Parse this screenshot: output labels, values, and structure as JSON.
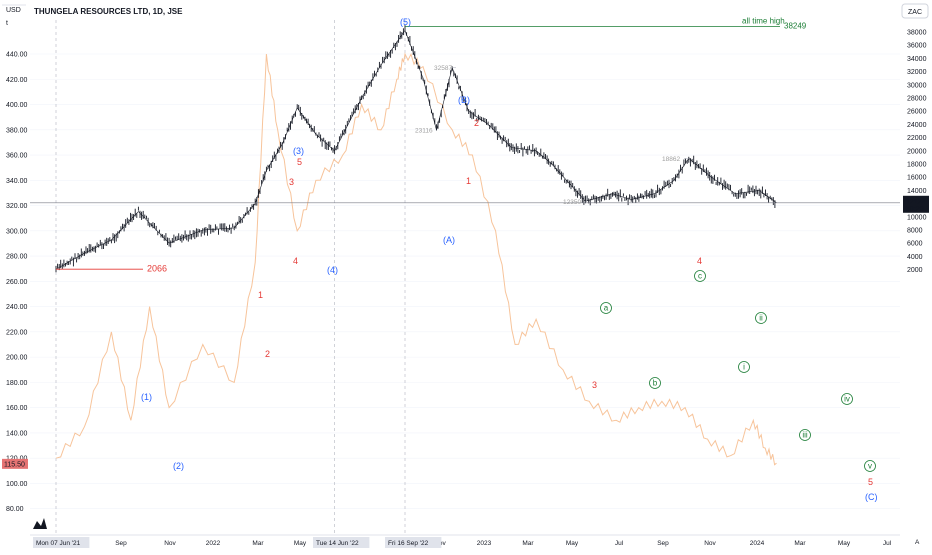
{
  "chart_data": {
    "type": "line",
    "title": "THUNGELA RESOURCES LTD, 1D, JSE",
    "left_axis": {
      "currency": "USD",
      "unit_marker": "t",
      "ticks": [
        "440.00",
        "420.00",
        "400.00",
        "380.00",
        "360.00",
        "340.00",
        "320.00",
        "300.00",
        "280.00",
        "260.00",
        "240.00",
        "220.00",
        "200.00",
        "180.00",
        "160.00",
        "140.00",
        "120.00",
        "100.00",
        "80.00"
      ],
      "last_value": "115.50"
    },
    "right_axis": {
      "currency": "ZAC",
      "ticks": [
        "38000",
        "36000",
        "34000",
        "32000",
        "30000",
        "28000",
        "26000",
        "24000",
        "22000",
        "20000",
        "18000",
        "16000",
        "14000",
        "12000",
        "10000",
        "8000",
        "6000",
        "4000",
        "2000"
      ],
      "last_price": "12124",
      "countdown": "50:20"
    },
    "x_axis": {
      "ticks": [
        "Sep",
        "Nov",
        "2022",
        "Mar",
        "May",
        "Jul",
        "Nov",
        "2023",
        "Mar",
        "May",
        "Jul",
        "Sep",
        "Nov",
        "2024",
        "Mar",
        "May",
        "Jul"
      ],
      "highlighted": [
        "Mon 07 Jun '21",
        "Tue 14 Jun '22",
        "Fri 16 Sep '22"
      ]
    },
    "series": [
      {
        "name": "",
        "color": "#131722",
        "x": [
          "2021-06-07",
          "2021-07-15",
          "2021-08-20",
          "2021-09-25",
          "2021-11-05",
          "2021-12-20",
          "2022-01-31",
          "2022-02-28",
          "2022-03-15",
          "2022-04-05",
          "2022-04-25",
          "2022-05-20",
          "2022-06-14",
          "2022-07-20",
          "2022-08-15",
          "2022-09-16",
          "2022-10-10",
          "2022-10-28",
          "2022-11-18",
          "2022-12-10",
          "2023-01-05",
          "2023-02-05",
          "2023-03-10",
          "2023-03-31",
          "2023-05-15",
          "2023-06-20",
          "2023-07-15",
          "2023-08-15",
          "2023-09-10",
          "2023-09-30",
          "2023-10-30",
          "2023-12-01",
          "2024-01-02",
          "2024-01-25"
        ],
        "values": [
          2066,
          4500,
          6500,
          10800,
          6000,
          8000,
          8300,
          12000,
          17000,
          21000,
          26500,
          22500,
          20000,
          28000,
          33000,
          38249,
          31000,
          23116,
          32587,
          26000,
          24000,
          20500,
          20000,
          18000,
          12350,
          13500,
          12600,
          13500,
          15500,
          18862,
          16000,
          13500,
          14000,
          12124
        ]
      },
      {
        "name": "",
        "color": "#f7c49b",
        "x": [
          "2021-06-07",
          "2021-07-15",
          "2021-08-20",
          "2021-09-15",
          "2021-10-10",
          "2021-11-05",
          "2021-12-20",
          "2022-01-31",
          "2022-02-28",
          "2022-03-15",
          "2022-03-30",
          "2022-04-25",
          "2022-05-20",
          "2022-06-25",
          "2022-07-20",
          "2022-08-15",
          "2022-09-05",
          "2022-09-16",
          "2022-10-10",
          "2022-11-18",
          "2022-12-15",
          "2023-01-15",
          "2023-02-10",
          "2023-03-10",
          "2023-04-15",
          "2023-05-20",
          "2023-06-25",
          "2023-07-25",
          "2023-08-25",
          "2023-09-25",
          "2023-10-25",
          "2023-11-25",
          "2023-12-25",
          "2024-01-10",
          "2024-01-25"
        ],
        "values": [
          120,
          145,
          220,
          150,
          240,
          160,
          210,
          180,
          275,
          440,
          380,
          300,
          340,
          360,
          400,
          380,
          420,
          440,
          430,
          380,
          360,
          300,
          210,
          230,
          190,
          165,
          150,
          160,
          165,
          160,
          135,
          122,
          150,
          128,
          116
        ]
      }
    ],
    "annotations": {
      "all_time_high_label": "all time high",
      "all_time_high_value": "38249",
      "low_value": "2066",
      "price_labels": [
        "32587",
        "23116",
        "18862",
        "12350"
      ],
      "blue_waves": [
        "(1)",
        "(2)",
        "(3)",
        "(4)",
        "(5)",
        "(A)",
        "(B)",
        "(C)"
      ],
      "red_waves": [
        "1",
        "2",
        "3",
        "4",
        "5",
        "1",
        "2",
        "3",
        "4",
        "5"
      ],
      "green_waves": [
        "a",
        "b",
        "c",
        "i",
        "ii",
        "iii",
        "iv",
        "v"
      ]
    }
  }
}
